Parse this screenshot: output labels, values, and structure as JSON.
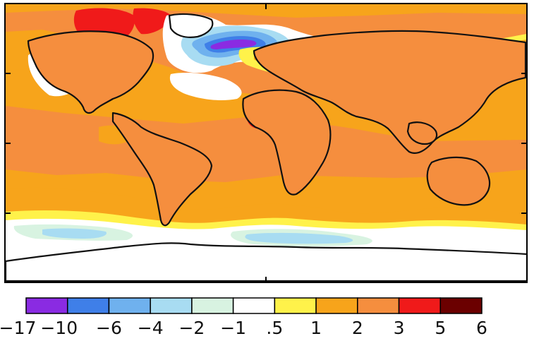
{
  "colors": {
    "ocean_base": "#f7a41b",
    "land_base": "#f58e3e",
    "coast": "#111111",
    "frame": "#000000"
  },
  "colorbar": {
    "bins": [
      {
        "color": "#8a2be2"
      },
      {
        "color": "#3f7fe8"
      },
      {
        "color": "#6fb1ee"
      },
      {
        "color": "#a8dcf2"
      },
      {
        "color": "#d8f3e1"
      },
      {
        "color": "#ffffff"
      },
      {
        "color": "#fff24a"
      },
      {
        "color": "#f7a41b"
      },
      {
        "color": "#f58e3e"
      },
      {
        "color": "#f01a1a"
      },
      {
        "color": "#6b0000"
      }
    ],
    "tick_labels": [
      "−17",
      "−10",
      "−6",
      "−4",
      "−2",
      "−1",
      ".5",
      "1",
      "2",
      "3",
      "5",
      "6"
    ]
  }
}
